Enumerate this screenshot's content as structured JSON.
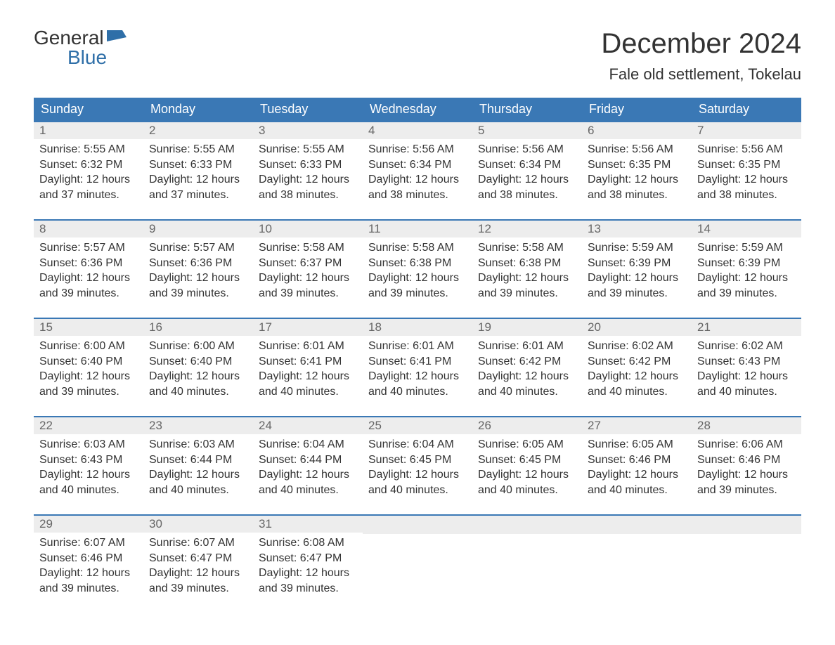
{
  "logo": {
    "text1": "General",
    "text2": "Blue",
    "icon_color": "#2f6fa8"
  },
  "title": "December 2024",
  "location": "Fale old settlement, Tokelau",
  "header_bg": "#3a78b5",
  "header_fg": "#ffffff",
  "daynum_bg": "#ededed",
  "daynum_fg": "#666666",
  "border_top": "#3a78b5",
  "columns": [
    "Sunday",
    "Monday",
    "Tuesday",
    "Wednesday",
    "Thursday",
    "Friday",
    "Saturday"
  ],
  "labels": {
    "sunrise": "Sunrise: ",
    "sunset": "Sunset: ",
    "daylight": "Daylight: "
  },
  "weeks": [
    [
      {
        "d": "1",
        "sr": "5:55 AM",
        "ss": "6:32 PM",
        "dl": "12 hours and 37 minutes."
      },
      {
        "d": "2",
        "sr": "5:55 AM",
        "ss": "6:33 PM",
        "dl": "12 hours and 37 minutes."
      },
      {
        "d": "3",
        "sr": "5:55 AM",
        "ss": "6:33 PM",
        "dl": "12 hours and 38 minutes."
      },
      {
        "d": "4",
        "sr": "5:56 AM",
        "ss": "6:34 PM",
        "dl": "12 hours and 38 minutes."
      },
      {
        "d": "5",
        "sr": "5:56 AM",
        "ss": "6:34 PM",
        "dl": "12 hours and 38 minutes."
      },
      {
        "d": "6",
        "sr": "5:56 AM",
        "ss": "6:35 PM",
        "dl": "12 hours and 38 minutes."
      },
      {
        "d": "7",
        "sr": "5:56 AM",
        "ss": "6:35 PM",
        "dl": "12 hours and 38 minutes."
      }
    ],
    [
      {
        "d": "8",
        "sr": "5:57 AM",
        "ss": "6:36 PM",
        "dl": "12 hours and 39 minutes."
      },
      {
        "d": "9",
        "sr": "5:57 AM",
        "ss": "6:36 PM",
        "dl": "12 hours and 39 minutes."
      },
      {
        "d": "10",
        "sr": "5:58 AM",
        "ss": "6:37 PM",
        "dl": "12 hours and 39 minutes."
      },
      {
        "d": "11",
        "sr": "5:58 AM",
        "ss": "6:38 PM",
        "dl": "12 hours and 39 minutes."
      },
      {
        "d": "12",
        "sr": "5:58 AM",
        "ss": "6:38 PM",
        "dl": "12 hours and 39 minutes."
      },
      {
        "d": "13",
        "sr": "5:59 AM",
        "ss": "6:39 PM",
        "dl": "12 hours and 39 minutes."
      },
      {
        "d": "14",
        "sr": "5:59 AM",
        "ss": "6:39 PM",
        "dl": "12 hours and 39 minutes."
      }
    ],
    [
      {
        "d": "15",
        "sr": "6:00 AM",
        "ss": "6:40 PM",
        "dl": "12 hours and 39 minutes."
      },
      {
        "d": "16",
        "sr": "6:00 AM",
        "ss": "6:40 PM",
        "dl": "12 hours and 40 minutes."
      },
      {
        "d": "17",
        "sr": "6:01 AM",
        "ss": "6:41 PM",
        "dl": "12 hours and 40 minutes."
      },
      {
        "d": "18",
        "sr": "6:01 AM",
        "ss": "6:41 PM",
        "dl": "12 hours and 40 minutes."
      },
      {
        "d": "19",
        "sr": "6:01 AM",
        "ss": "6:42 PM",
        "dl": "12 hours and 40 minutes."
      },
      {
        "d": "20",
        "sr": "6:02 AM",
        "ss": "6:42 PM",
        "dl": "12 hours and 40 minutes."
      },
      {
        "d": "21",
        "sr": "6:02 AM",
        "ss": "6:43 PM",
        "dl": "12 hours and 40 minutes."
      }
    ],
    [
      {
        "d": "22",
        "sr": "6:03 AM",
        "ss": "6:43 PM",
        "dl": "12 hours and 40 minutes."
      },
      {
        "d": "23",
        "sr": "6:03 AM",
        "ss": "6:44 PM",
        "dl": "12 hours and 40 minutes."
      },
      {
        "d": "24",
        "sr": "6:04 AM",
        "ss": "6:44 PM",
        "dl": "12 hours and 40 minutes."
      },
      {
        "d": "25",
        "sr": "6:04 AM",
        "ss": "6:45 PM",
        "dl": "12 hours and 40 minutes."
      },
      {
        "d": "26",
        "sr": "6:05 AM",
        "ss": "6:45 PM",
        "dl": "12 hours and 40 minutes."
      },
      {
        "d": "27",
        "sr": "6:05 AM",
        "ss": "6:46 PM",
        "dl": "12 hours and 40 minutes."
      },
      {
        "d": "28",
        "sr": "6:06 AM",
        "ss": "6:46 PM",
        "dl": "12 hours and 39 minutes."
      }
    ],
    [
      {
        "d": "29",
        "sr": "6:07 AM",
        "ss": "6:46 PM",
        "dl": "12 hours and 39 minutes."
      },
      {
        "d": "30",
        "sr": "6:07 AM",
        "ss": "6:47 PM",
        "dl": "12 hours and 39 minutes."
      },
      {
        "d": "31",
        "sr": "6:08 AM",
        "ss": "6:47 PM",
        "dl": "12 hours and 39 minutes."
      },
      null,
      null,
      null,
      null
    ]
  ]
}
